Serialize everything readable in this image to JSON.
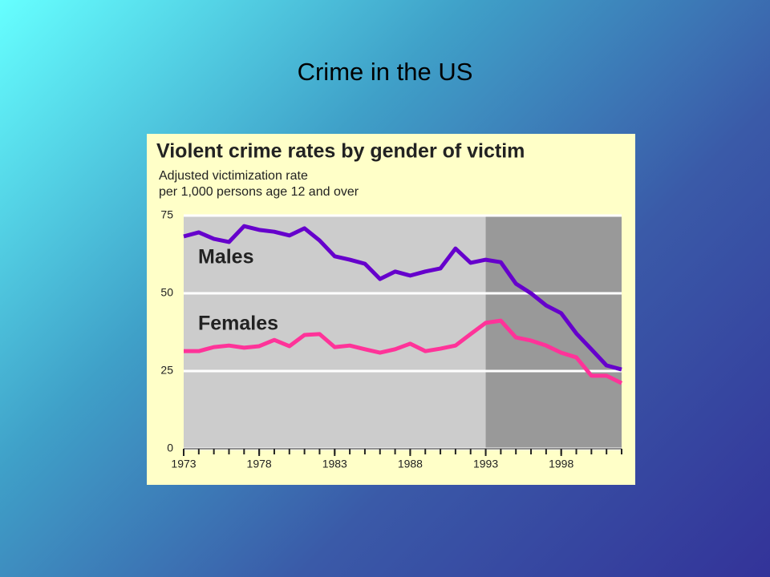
{
  "slide_title": "Crime in the US",
  "chart_data": {
    "type": "line",
    "title": "Violent crime rates by gender of victim",
    "subtitle": [
      "Adjusted victimization rate",
      "per 1,000 persons age 12 and over"
    ],
    "x": [
      1973,
      1974,
      1975,
      1976,
      1977,
      1978,
      1979,
      1980,
      1981,
      1982,
      1983,
      1984,
      1985,
      1986,
      1987,
      1988,
      1989,
      1990,
      1991,
      1992,
      1993,
      1994,
      1995,
      1996,
      1997,
      1998,
      1999,
      2000,
      2001,
      2002
    ],
    "series": [
      {
        "name": "Males",
        "color": "#6600cc",
        "values": [
          68.3,
          69.6,
          67.5,
          66.5,
          71.6,
          70.4,
          69.8,
          68.6,
          70.9,
          67.0,
          61.9,
          60.8,
          59.5,
          54.6,
          57.0,
          55.7,
          57.0,
          58.0,
          64.4,
          59.8,
          60.8,
          60.0,
          53.1,
          50.0,
          46.1,
          43.6,
          37.1,
          32.0,
          26.8,
          25.5
        ]
      },
      {
        "name": "Females",
        "color": "#ff3399",
        "values": [
          31.4,
          31.4,
          32.7,
          33.2,
          32.5,
          33.0,
          35.0,
          33.0,
          36.6,
          36.9,
          32.7,
          33.2,
          32.0,
          30.9,
          32.0,
          33.8,
          31.4,
          32.2,
          33.2,
          36.9,
          40.5,
          41.2,
          35.8,
          34.8,
          33.2,
          30.9,
          29.4,
          23.5,
          23.5,
          21.1
        ]
      }
    ],
    "xlim": [
      1973,
      2002
    ],
    "xticks": [
      1973,
      1978,
      1983,
      1988,
      1993,
      1998
    ],
    "ylim": [
      0,
      75
    ],
    "yticks": [
      0,
      25,
      50,
      75
    ],
    "grid": true,
    "shaded_from": 1993
  }
}
